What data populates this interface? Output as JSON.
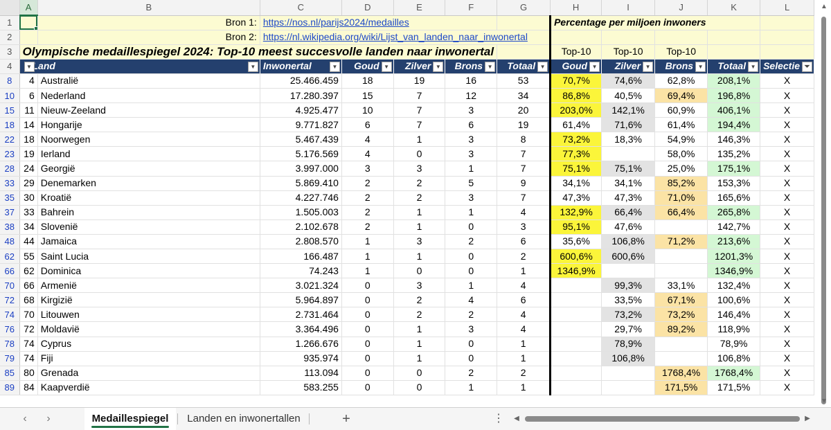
{
  "columns": [
    "A",
    "B",
    "C",
    "D",
    "E",
    "F",
    "G",
    "H",
    "I",
    "J",
    "K",
    "L"
  ],
  "rows": {
    "r1": {
      "num": "1",
      "bron_label": "Bron 1:",
      "bron_link": "https://nos.nl/parijs2024/medailles",
      "pct_title": "Percentage per miljoen inwoners"
    },
    "r2": {
      "num": "2",
      "bron_label": "Bron 2:",
      "bron_link": "https://nl.wikipedia.org/wiki/Lijst_van_landen_naar_inwonertal"
    },
    "r3": {
      "num": "3",
      "title": "Olympische medaillespiegel 2024: Top-10 meest succesvolle landen naar inwonertal",
      "top_h": "Top-10",
      "top_i": "Top-10",
      "top_j": "Top-10"
    },
    "r4": {
      "num": "4"
    }
  },
  "headers": {
    "land": "Land",
    "inwonertal": "Inwonertal",
    "goud": "Goud",
    "zilver": "Zilver",
    "brons": "Brons",
    "totaal": "Totaal",
    "pgoud": "Goud",
    "pzilver": "Zilver",
    "pbrons": "Brons",
    "ptotaal": "Totaal",
    "selectie": "Selectie"
  },
  "data": [
    {
      "row": "8",
      "a": "4",
      "land": "Australië",
      "inw": "25.466.459",
      "goud": "18",
      "zilver": "19",
      "brons": "16",
      "tot": "53",
      "pg": "70,7%",
      "pz": "74,6%",
      "pb": "62,8%",
      "pt": "208,1%",
      "sel": "X",
      "cg": "g",
      "cz": "gr",
      "cb": "",
      "ct": "t"
    },
    {
      "row": "10",
      "a": "6",
      "land": "Nederland",
      "inw": "17.280.397",
      "goud": "15",
      "zilver": "7",
      "brons": "12",
      "tot": "34",
      "pg": "86,8%",
      "pz": "40,5%",
      "pb": "69,4%",
      "pt": "196,8%",
      "sel": "X",
      "cg": "g",
      "cz": "",
      "cb": "o",
      "ct": "t"
    },
    {
      "row": "15",
      "a": "11",
      "land": "Nieuw-Zeeland",
      "inw": "4.925.477",
      "goud": "10",
      "zilver": "7",
      "brons": "3",
      "tot": "20",
      "pg": "203,0%",
      "pz": "142,1%",
      "pb": "60,9%",
      "pt": "406,1%",
      "sel": "X",
      "cg": "g",
      "cz": "gr",
      "cb": "",
      "ct": "t"
    },
    {
      "row": "18",
      "a": "14",
      "land": "Hongarije",
      "inw": "9.771.827",
      "goud": "6",
      "zilver": "7",
      "brons": "6",
      "tot": "19",
      "pg": "61,4%",
      "pz": "71,6%",
      "pb": "61,4%",
      "pt": "194,4%",
      "sel": "X",
      "cg": "",
      "cz": "gr",
      "cb": "",
      "ct": "t"
    },
    {
      "row": "22",
      "a": "18",
      "land": "Noorwegen",
      "inw": "5.467.439",
      "goud": "4",
      "zilver": "1",
      "brons": "3",
      "tot": "8",
      "pg": "73,2%",
      "pz": "18,3%",
      "pb": "54,9%",
      "pt": "146,3%",
      "sel": "X",
      "cg": "g",
      "cz": "",
      "cb": "",
      "ct": ""
    },
    {
      "row": "23",
      "a": "19",
      "land": "Ierland",
      "inw": "5.176.569",
      "goud": "4",
      "zilver": "0",
      "brons": "3",
      "tot": "7",
      "pg": "77,3%",
      "pz": "",
      "pb": "58,0%",
      "pt": "135,2%",
      "sel": "X",
      "cg": "g",
      "cz": "",
      "cb": "",
      "ct": ""
    },
    {
      "row": "28",
      "a": "24",
      "land": "Georgië",
      "inw": "3.997.000",
      "goud": "3",
      "zilver": "3",
      "brons": "1",
      "tot": "7",
      "pg": "75,1%",
      "pz": "75,1%",
      "pb": "25,0%",
      "pt": "175,1%",
      "sel": "X",
      "cg": "g",
      "cz": "gr",
      "cb": "",
      "ct": "t"
    },
    {
      "row": "33",
      "a": "29",
      "land": "Denemarken",
      "inw": "5.869.410",
      "goud": "2",
      "zilver": "2",
      "brons": "5",
      "tot": "9",
      "pg": "34,1%",
      "pz": "34,1%",
      "pb": "85,2%",
      "pt": "153,3%",
      "sel": "X",
      "cg": "",
      "cz": "",
      "cb": "o",
      "ct": ""
    },
    {
      "row": "35",
      "a": "30",
      "land": "Kroatië",
      "inw": "4.227.746",
      "goud": "2",
      "zilver": "2",
      "brons": "3",
      "tot": "7",
      "pg": "47,3%",
      "pz": "47,3%",
      "pb": "71,0%",
      "pt": "165,6%",
      "sel": "X",
      "cg": "",
      "cz": "",
      "cb": "o",
      "ct": ""
    },
    {
      "row": "37",
      "a": "33",
      "land": "Bahrein",
      "inw": "1.505.003",
      "goud": "2",
      "zilver": "1",
      "brons": "1",
      "tot": "4",
      "pg": "132,9%",
      "pz": "66,4%",
      "pb": "66,4%",
      "pt": "265,8%",
      "sel": "X",
      "cg": "g",
      "cz": "gr",
      "cb": "o",
      "ct": "t"
    },
    {
      "row": "38",
      "a": "34",
      "land": "Slovenië",
      "inw": "2.102.678",
      "goud": "2",
      "zilver": "1",
      "brons": "0",
      "tot": "3",
      "pg": "95,1%",
      "pz": "47,6%",
      "pb": "",
      "pt": "142,7%",
      "sel": "X",
      "cg": "g",
      "cz": "",
      "cb": "",
      "ct": ""
    },
    {
      "row": "48",
      "a": "44",
      "land": "Jamaica",
      "inw": "2.808.570",
      "goud": "1",
      "zilver": "3",
      "brons": "2",
      "tot": "6",
      "pg": "35,6%",
      "pz": "106,8%",
      "pb": "71,2%",
      "pt": "213,6%",
      "sel": "X",
      "cg": "",
      "cz": "gr",
      "cb": "o",
      "ct": "t"
    },
    {
      "row": "62",
      "a": "55",
      "land": "Saint Lucia",
      "inw": "166.487",
      "goud": "1",
      "zilver": "1",
      "brons": "0",
      "tot": "2",
      "pg": "600,6%",
      "pz": "600,6%",
      "pb": "",
      "pt": "1201,3%",
      "sel": "X",
      "cg": "g",
      "cz": "gr",
      "cb": "",
      "ct": "t"
    },
    {
      "row": "66",
      "a": "62",
      "land": "Dominica",
      "inw": "74.243",
      "goud": "1",
      "zilver": "0",
      "brons": "0",
      "tot": "1",
      "pg": "1346,9%",
      "pz": "",
      "pb": "",
      "pt": "1346,9%",
      "sel": "X",
      "cg": "g",
      "cz": "",
      "cb": "",
      "ct": "t"
    },
    {
      "row": "70",
      "a": "66",
      "land": "Armenië",
      "inw": "3.021.324",
      "goud": "0",
      "zilver": "3",
      "brons": "1",
      "tot": "4",
      "pg": "",
      "pz": "99,3%",
      "pb": "33,1%",
      "pt": "132,4%",
      "sel": "X",
      "cg": "",
      "cz": "gr",
      "cb": "",
      "ct": ""
    },
    {
      "row": "72",
      "a": "68",
      "land": "Kirgizië",
      "inw": "5.964.897",
      "goud": "0",
      "zilver": "2",
      "brons": "4",
      "tot": "6",
      "pg": "",
      "pz": "33,5%",
      "pb": "67,1%",
      "pt": "100,6%",
      "sel": "X",
      "cg": "",
      "cz": "",
      "cb": "o",
      "ct": ""
    },
    {
      "row": "74",
      "a": "70",
      "land": "Litouwen",
      "inw": "2.731.464",
      "goud": "0",
      "zilver": "2",
      "brons": "2",
      "tot": "4",
      "pg": "",
      "pz": "73,2%",
      "pb": "73,2%",
      "pt": "146,4%",
      "sel": "X",
      "cg": "",
      "cz": "gr",
      "cb": "o",
      "ct": ""
    },
    {
      "row": "76",
      "a": "72",
      "land": "Moldavië",
      "inw": "3.364.496",
      "goud": "0",
      "zilver": "1",
      "brons": "3",
      "tot": "4",
      "pg": "",
      "pz": "29,7%",
      "pb": "89,2%",
      "pt": "118,9%",
      "sel": "X",
      "cg": "",
      "cz": "",
      "cb": "o",
      "ct": ""
    },
    {
      "row": "78",
      "a": "74",
      "land": "Cyprus",
      "inw": "1.266.676",
      "goud": "0",
      "zilver": "1",
      "brons": "0",
      "tot": "1",
      "pg": "",
      "pz": "78,9%",
      "pb": "",
      "pt": "78,9%",
      "sel": "X",
      "cg": "",
      "cz": "gr",
      "cb": "",
      "ct": ""
    },
    {
      "row": "79",
      "a": "74",
      "land": "Fiji",
      "inw": "935.974",
      "goud": "0",
      "zilver": "1",
      "brons": "0",
      "tot": "1",
      "pg": "",
      "pz": "106,8%",
      "pb": "",
      "pt": "106,8%",
      "sel": "X",
      "cg": "",
      "cz": "gr",
      "cb": "",
      "ct": ""
    },
    {
      "row": "85",
      "a": "80",
      "land": "Grenada",
      "inw": "113.094",
      "goud": "0",
      "zilver": "0",
      "brons": "2",
      "tot": "2",
      "pg": "",
      "pz": "",
      "pb": "1768,4%",
      "pt": "1768,4%",
      "sel": "X",
      "cg": "",
      "cz": "",
      "cb": "o",
      "ct": "t"
    },
    {
      "row": "89",
      "a": "84",
      "land": "Kaapverdië",
      "inw": "583.255",
      "goud": "0",
      "zilver": "0",
      "brons": "1",
      "tot": "1",
      "pg": "",
      "pz": "",
      "pb": "171,5%",
      "pt": "171,5%",
      "sel": "X",
      "cg": "",
      "cz": "",
      "cb": "o",
      "ct": ""
    }
  ],
  "sheet_tabs": [
    {
      "label": "Medaillespiegel",
      "active": true
    },
    {
      "label": "Landen en inwonertallen",
      "active": false
    }
  ],
  "icons": {
    "prev": "chevron-left-icon",
    "next": "chevron-right-icon",
    "add": "plus-icon",
    "more": "vertical-ellipsis-icon"
  },
  "colors": {
    "header": "#24406e",
    "gold": "#fbf53a",
    "silver": "#e3e3e3",
    "bronze": "#fbe3a5",
    "total": "#d4f7d4",
    "accent": "#217346"
  }
}
